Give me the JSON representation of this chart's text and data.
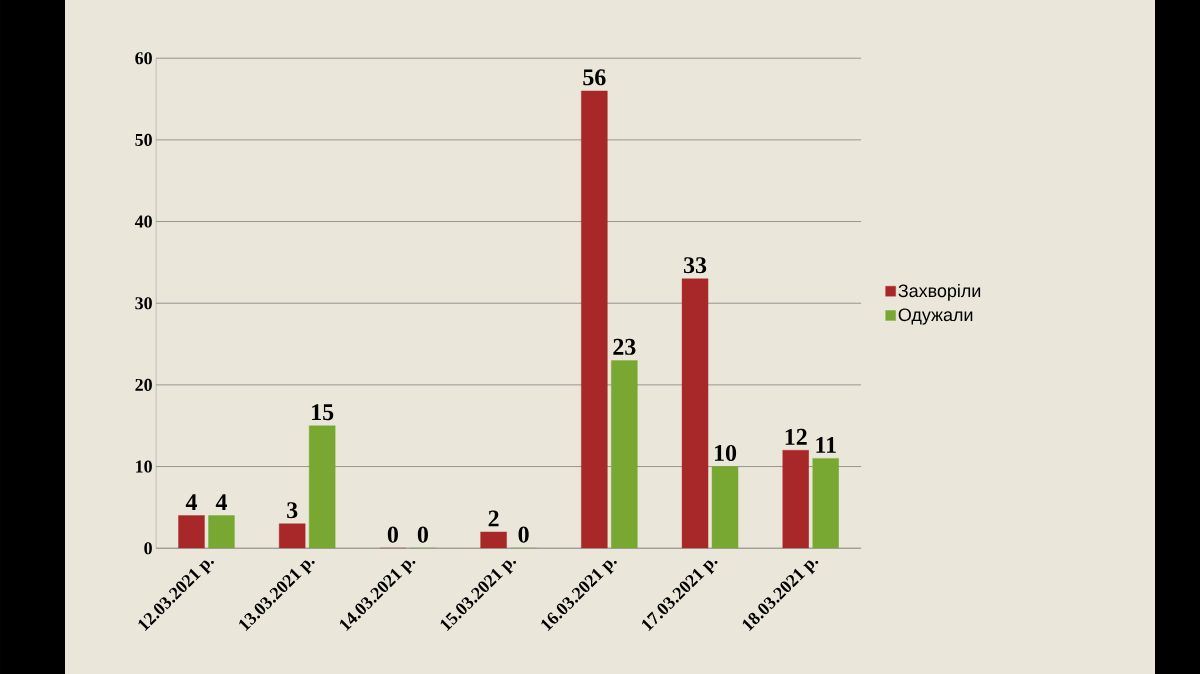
{
  "chart_data": {
    "type": "bar",
    "categories": [
      "12.03.2021 р.",
      "13.03.2021 р.",
      "14.03.2021 р.",
      "15.03.2021 р.",
      "16.03.2021 р.",
      "17.03.2021 р.",
      "18.03.2021 р."
    ],
    "series": [
      {
        "name": "Захворіли",
        "color": "#a8282a",
        "values": [
          4,
          3,
          0,
          2,
          56,
          33,
          12
        ]
      },
      {
        "name": "Одужали",
        "color": "#78a832",
        "values": [
          4,
          15,
          0,
          0,
          23,
          10,
          11
        ]
      }
    ],
    "ylim": [
      0,
      60
    ],
    "yticks": [
      0,
      10,
      20,
      30,
      40,
      50,
      60
    ],
    "grid": "y",
    "legend": "right",
    "data_labels": true
  }
}
